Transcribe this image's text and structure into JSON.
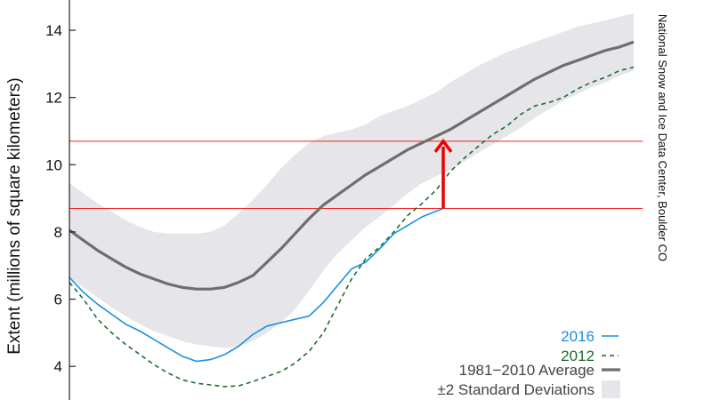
{
  "chart_data": {
    "type": "line",
    "title": "",
    "xlabel": "",
    "ylabel": "Extent (millions of square kilometers)",
    "ylim": [
      3,
      14.9
    ],
    "yticks": [
      4,
      6,
      8,
      10,
      12,
      14
    ],
    "x_count": 40,
    "grid": false,
    "legend_position": "bottom-right",
    "credit": "National Snow and Ice Data Center, Boulder CO",
    "colors": {
      "s2016": "#1a90e0",
      "s2012": "#1e6b2e",
      "average": "#6e6e6e",
      "band": "#e6e6ea",
      "reference": "#ee2222",
      "arrow": "#ee0000"
    },
    "reference_lines": [
      10.7,
      8.7
    ],
    "arrow": {
      "x": 26.5,
      "from": 8.7,
      "to": 10.7
    },
    "series": [
      {
        "name": "2016",
        "style": "solid",
        "x": [
          0,
          1,
          2,
          3,
          4,
          5,
          6,
          7,
          8,
          9,
          10,
          11,
          12,
          13,
          14,
          15,
          16,
          17,
          18,
          19,
          20,
          21,
          22,
          23,
          24,
          25,
          26.5
        ],
        "values": [
          6.65,
          6.2,
          5.85,
          5.55,
          5.25,
          5.05,
          4.8,
          4.55,
          4.3,
          4.15,
          4.2,
          4.35,
          4.6,
          4.95,
          5.2,
          5.3,
          5.4,
          5.5,
          5.9,
          6.4,
          6.9,
          7.1,
          7.5,
          7.95,
          8.2,
          8.45,
          8.7
        ]
      },
      {
        "name": "2012",
        "style": "dashed",
        "x": [
          0,
          1,
          2,
          3,
          4,
          5,
          6,
          7,
          8,
          9,
          10,
          11,
          12,
          13,
          14,
          15,
          16,
          17,
          18,
          19,
          20,
          21,
          22,
          23,
          24,
          25,
          26,
          27,
          28,
          29,
          30,
          31,
          32,
          33,
          34,
          35,
          36,
          37,
          38,
          39,
          40
        ],
        "values": [
          6.5,
          6.0,
          5.4,
          5.0,
          4.65,
          4.35,
          4.05,
          3.8,
          3.6,
          3.5,
          3.45,
          3.4,
          3.42,
          3.55,
          3.7,
          3.85,
          4.1,
          4.45,
          5.0,
          5.8,
          6.6,
          7.2,
          7.55,
          8.0,
          8.5,
          8.85,
          9.25,
          9.8,
          10.2,
          10.55,
          10.9,
          11.15,
          11.5,
          11.75,
          11.85,
          12.0,
          12.25,
          12.45,
          12.6,
          12.8,
          12.9
        ]
      },
      {
        "name": "1981−2010 Average",
        "style": "solid-thick",
        "x": [
          0,
          1,
          2,
          3,
          4,
          5,
          6,
          7,
          8,
          9,
          10,
          11,
          12,
          13,
          14,
          15,
          16,
          17,
          18,
          19,
          20,
          21,
          22,
          23,
          24,
          25,
          26,
          27,
          28,
          29,
          30,
          31,
          32,
          33,
          34,
          35,
          36,
          37,
          38,
          39,
          40
        ],
        "values": [
          8.05,
          7.75,
          7.45,
          7.2,
          6.95,
          6.75,
          6.6,
          6.45,
          6.35,
          6.3,
          6.3,
          6.35,
          6.5,
          6.7,
          7.1,
          7.5,
          7.95,
          8.4,
          8.8,
          9.1,
          9.4,
          9.7,
          9.95,
          10.2,
          10.45,
          10.65,
          10.85,
          11.05,
          11.3,
          11.55,
          11.8,
          12.05,
          12.3,
          12.55,
          12.75,
          12.95,
          13.1,
          13.25,
          13.4,
          13.5,
          13.65
        ]
      },
      {
        "name": "±2 Standard Deviations",
        "style": "band",
        "x": [
          0,
          1,
          2,
          3,
          4,
          5,
          6,
          7,
          8,
          9,
          10,
          11,
          12,
          13,
          14,
          15,
          16,
          17,
          18,
          19,
          20,
          21,
          22,
          23,
          24,
          25,
          26,
          27,
          28,
          29,
          30,
          31,
          32,
          33,
          34,
          35,
          36,
          37,
          38,
          39,
          40
        ],
        "upper": [
          9.45,
          9.15,
          8.85,
          8.6,
          8.35,
          8.15,
          8.0,
          7.95,
          7.95,
          7.95,
          8.0,
          8.2,
          8.55,
          8.95,
          9.4,
          9.9,
          10.3,
          10.65,
          10.85,
          10.95,
          11.05,
          11.2,
          11.45,
          11.6,
          11.75,
          11.95,
          12.15,
          12.45,
          12.7,
          12.95,
          13.15,
          13.35,
          13.5,
          13.65,
          13.8,
          13.95,
          14.1,
          14.2,
          14.3,
          14.4,
          14.5
        ],
        "lower": [
          6.65,
          6.35,
          6.05,
          5.75,
          5.5,
          5.25,
          5.05,
          4.9,
          4.75,
          4.65,
          4.6,
          4.55,
          4.6,
          4.75,
          5.0,
          5.3,
          5.7,
          6.25,
          6.85,
          7.35,
          7.75,
          8.15,
          8.45,
          8.8,
          9.15,
          9.45,
          9.65,
          9.85,
          10.1,
          10.35,
          10.6,
          10.85,
          11.1,
          11.4,
          11.65,
          11.9,
          12.1,
          12.3,
          12.45,
          12.65,
          12.8
        ]
      }
    ],
    "legend": [
      {
        "label": "2016",
        "key": "s2016"
      },
      {
        "label": "2012",
        "key": "s2012"
      },
      {
        "label": "1981−2010 Average",
        "key": "average"
      },
      {
        "label": "±2 Standard Deviations",
        "key": "band"
      }
    ]
  }
}
